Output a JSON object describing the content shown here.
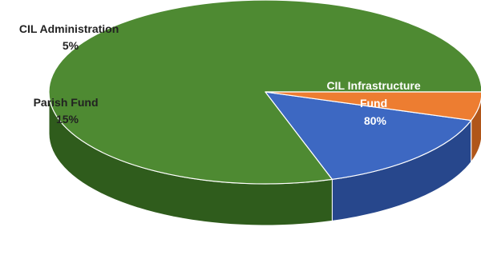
{
  "chart_data": {
    "type": "pie",
    "style": "3d",
    "slices": [
      {
        "label_lines": [
          "CIL Infrastructure",
          "Fund"
        ],
        "percent_label": "80%",
        "value": 80,
        "color": "#4E8A32",
        "side_color": "#2F5C1C",
        "label_color": "#ffffff"
      },
      {
        "label_lines": [
          "Parish Fund"
        ],
        "percent_label": "15%",
        "value": 15,
        "color": "#3D68C2",
        "side_color": "#27478C",
        "label_color": "#222222"
      },
      {
        "label_lines": [
          "CIL Administration"
        ],
        "percent_label": "5%",
        "value": 5,
        "color": "#ED7D31",
        "side_color": "#B0561A",
        "label_color": "#222222"
      }
    ],
    "legend": "none"
  }
}
